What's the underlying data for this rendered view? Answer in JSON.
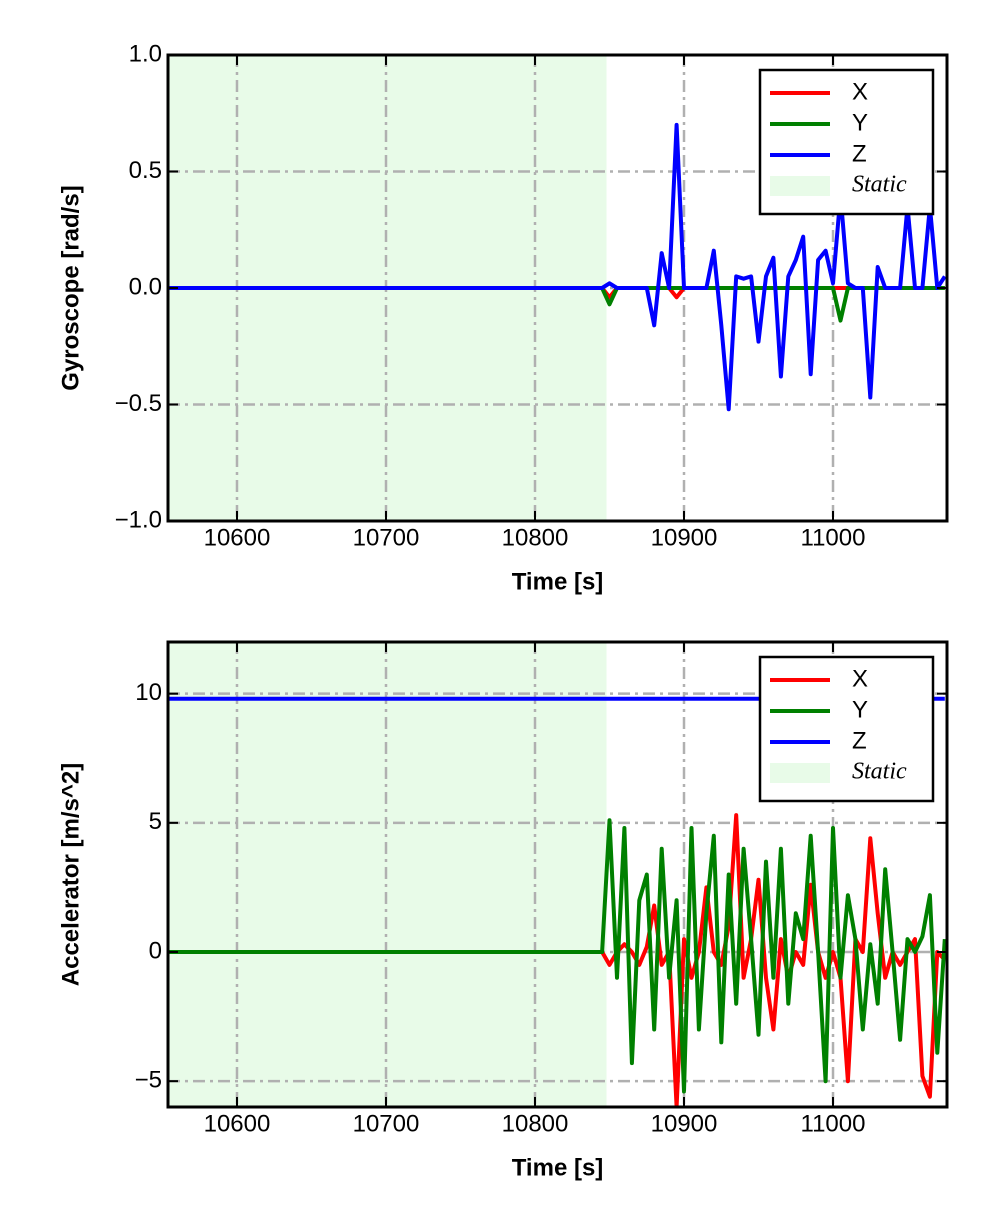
{
  "chart_data": [
    {
      "type": "line",
      "xlabel": "Time [s]",
      "ylabel": "Gyroscope [rad/s]",
      "xlim": [
        10553.7,
        11076.5
      ],
      "ylim": [
        -1,
        1
      ],
      "xticks": [
        10600,
        10700,
        10800,
        10900,
        11000
      ],
      "yticks": [
        {
          "value": -1,
          "label": "−1.0"
        },
        {
          "value": -0.5,
          "label": "−0.5"
        },
        {
          "value": 0,
          "label": "0.0"
        },
        0.5,
        {
          "value": 1,
          "label": "1.0"
        }
      ],
      "grid": true,
      "legend": "upper right",
      "static_region": {
        "name": "Static",
        "color": "#e8fbe8",
        "until": 10848
      },
      "x": [
        10554,
        10845,
        10850,
        10855,
        10860,
        10865,
        10870,
        10875,
        10880,
        10885,
        10890,
        10895,
        10900,
        10905,
        10910,
        10915,
        10920,
        10925,
        10930,
        10935,
        10940,
        10945,
        10950,
        10955,
        10960,
        10965,
        10970,
        10975,
        10980,
        10985,
        10990,
        10995,
        11000,
        11005,
        11010,
        11015,
        11020,
        11025,
        11030,
        11035,
        11040,
        11045,
        11050,
        11055,
        11060,
        11065,
        11070,
        11075
      ],
      "series": [
        {
          "name": "X",
          "color": "#ff0000",
          "values": [
            0,
            0,
            -0.04,
            0,
            0,
            0,
            0,
            0,
            0,
            0,
            0,
            -0.04,
            0,
            0,
            0,
            0,
            0,
            0,
            0,
            0,
            0,
            0,
            0,
            0,
            0,
            0,
            0,
            0,
            0,
            0,
            0,
            0,
            0,
            0,
            0,
            0,
            0,
            0,
            0,
            0,
            0,
            0,
            0,
            0,
            0,
            0,
            0,
            0
          ]
        },
        {
          "name": "Y",
          "color": "#008000",
          "values": [
            0,
            0,
            -0.07,
            0,
            0,
            0,
            0,
            0,
            0,
            0,
            0,
            0,
            0,
            0,
            0,
            0,
            0,
            0,
            0,
            0,
            0,
            0,
            0,
            0,
            0,
            0,
            0,
            0,
            0,
            0,
            0,
            0,
            0,
            -0.14,
            0,
            0,
            0,
            0,
            0,
            0,
            0,
            0,
            0,
            0,
            0,
            0,
            0,
            0
          ]
        },
        {
          "name": "Z",
          "color": "#0000ff",
          "values": [
            0,
            0,
            0.02,
            0,
            0,
            0,
            0,
            0,
            -0.16,
            0.15,
            0,
            0.7,
            0,
            0,
            0,
            0,
            0.16,
            -0.16,
            -0.52,
            0.05,
            0.04,
            0.05,
            -0.23,
            0.05,
            0.13,
            -0.38,
            0.05,
            0.12,
            0.22,
            -0.37,
            0.12,
            0.16,
            0.02,
            0.4,
            0.02,
            0,
            0,
            -0.47,
            0.09,
            0,
            0,
            0,
            0.35,
            0,
            0,
            0.35,
            0,
            0.05
          ]
        }
      ]
    },
    {
      "type": "line",
      "xlabel": "Time [s]",
      "ylabel": "Accelerator [m/s^2]",
      "xlim": [
        10553.7,
        11076.5
      ],
      "ylim": [
        -6,
        12
      ],
      "xticks": [
        10600,
        10700,
        10800,
        10900,
        11000
      ],
      "yticks": [
        {
          "value": -5,
          "label": "−5"
        },
        0,
        5,
        10
      ],
      "grid": true,
      "legend": "upper right",
      "static_region": {
        "name": "Static",
        "color": "#e8fbe8",
        "until": 10848
      },
      "x": [
        10554,
        10845,
        10850,
        10855,
        10860,
        10865,
        10870,
        10875,
        10880,
        10885,
        10890,
        10895,
        10900,
        10905,
        10910,
        10915,
        10920,
        10925,
        10930,
        10935,
        10940,
        10945,
        10950,
        10955,
        10960,
        10965,
        10970,
        10975,
        10980,
        10985,
        10990,
        10995,
        11000,
        11005,
        11010,
        11015,
        11020,
        11025,
        11030,
        11035,
        11040,
        11045,
        11050,
        11055,
        11060,
        11065,
        11070,
        11075
      ],
      "series": [
        {
          "name": "X",
          "color": "#ff0000",
          "values": [
            0,
            0,
            -0.5,
            0,
            0.3,
            0,
            -0.5,
            0.2,
            1.8,
            -0.5,
            0,
            -6,
            0.5,
            -1,
            0,
            2.5,
            0,
            -0.5,
            1,
            5.3,
            -1,
            0.5,
            2.8,
            -1,
            -3,
            0.5,
            -1,
            0,
            -0.5,
            2.6,
            0,
            -1,
            0,
            -1,
            -5,
            0.5,
            0,
            4.4,
            1.5,
            -1,
            0,
            -0.5,
            0,
            0.5,
            -4.8,
            -5.6,
            0,
            -0.3
          ]
        },
        {
          "name": "Y",
          "color": "#008000",
          "values": [
            0,
            0,
            5.1,
            -1,
            4.8,
            -4.3,
            2,
            3,
            -3,
            4,
            -1,
            2,
            -5.4,
            4.8,
            -3,
            1.5,
            4.5,
            -3.5,
            3,
            -2,
            4,
            0.5,
            -3.2,
            3.5,
            -1,
            4,
            -2,
            1.5,
            0.5,
            4.5,
            0,
            -5,
            4.8,
            -1,
            2.2,
            0.5,
            -3,
            0.3,
            -2,
            3.2,
            0,
            -3.4,
            0.5,
            0,
            0.6,
            2.2,
            -3.9,
            0.5
          ]
        },
        {
          "name": "Z",
          "color": "#0000ff",
          "values": [
            9.8,
            9.8,
            9.8,
            9.8,
            9.8,
            9.8,
            9.8,
            9.8,
            9.8,
            9.8,
            9.8,
            9.8,
            9.8,
            9.8,
            9.8,
            9.8,
            9.8,
            9.8,
            9.8,
            9.8,
            9.8,
            9.8,
            9.8,
            9.8,
            9.8,
            9.8,
            9.8,
            9.8,
            9.8,
            9.8,
            9.8,
            9.8,
            9.8,
            9.8,
            9.8,
            9.8,
            9.8,
            9.8,
            9.8,
            9.8,
            9.8,
            9.8,
            9.8,
            9.8,
            9.8,
            9.8,
            9.8,
            9.8
          ]
        }
      ]
    }
  ]
}
